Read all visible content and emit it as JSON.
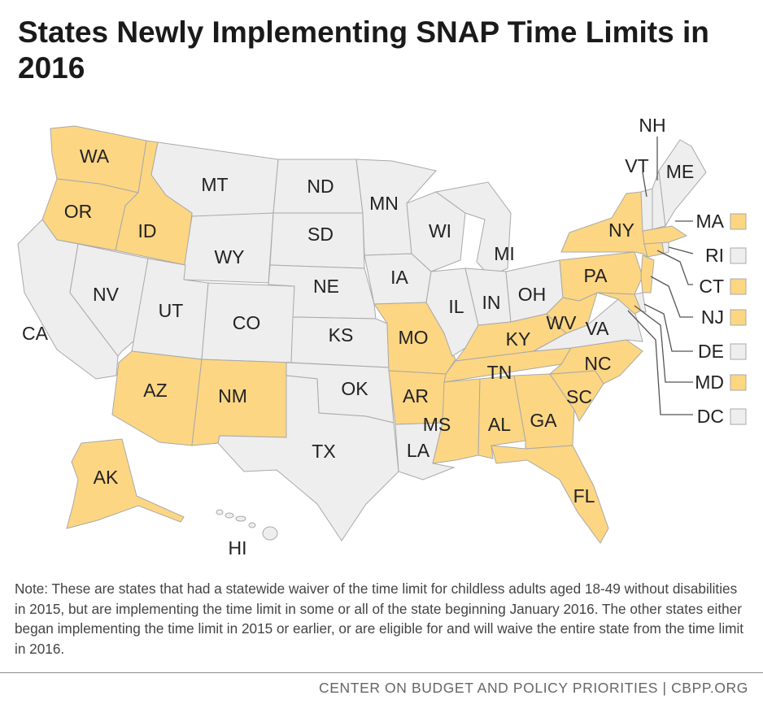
{
  "title": "States Newly Implementing SNAP Time Limits in 2016",
  "colors": {
    "implementing": "#fcd683",
    "other": "#eeeeee",
    "border": "#a9a9a9",
    "leader": "#555555"
  },
  "states": [
    {
      "code": "WA",
      "status": "implementing"
    },
    {
      "code": "OR",
      "status": "implementing"
    },
    {
      "code": "ID",
      "status": "implementing"
    },
    {
      "code": "CA",
      "status": "other"
    },
    {
      "code": "NV",
      "status": "other"
    },
    {
      "code": "MT",
      "status": "other"
    },
    {
      "code": "WY",
      "status": "other"
    },
    {
      "code": "UT",
      "status": "other"
    },
    {
      "code": "CO",
      "status": "other"
    },
    {
      "code": "AZ",
      "status": "implementing"
    },
    {
      "code": "NM",
      "status": "implementing"
    },
    {
      "code": "ND",
      "status": "other"
    },
    {
      "code": "SD",
      "status": "other"
    },
    {
      "code": "NE",
      "status": "other"
    },
    {
      "code": "KS",
      "status": "other"
    },
    {
      "code": "OK",
      "status": "other"
    },
    {
      "code": "TX",
      "status": "other"
    },
    {
      "code": "MN",
      "status": "other"
    },
    {
      "code": "IA",
      "status": "other"
    },
    {
      "code": "MO",
      "status": "implementing"
    },
    {
      "code": "AR",
      "status": "implementing"
    },
    {
      "code": "LA",
      "status": "other"
    },
    {
      "code": "WI",
      "status": "other"
    },
    {
      "code": "IL",
      "status": "other"
    },
    {
      "code": "MI",
      "status": "other"
    },
    {
      "code": "IN",
      "status": "other"
    },
    {
      "code": "OH",
      "status": "other"
    },
    {
      "code": "KY",
      "status": "implementing"
    },
    {
      "code": "TN",
      "status": "implementing"
    },
    {
      "code": "MS",
      "status": "implementing"
    },
    {
      "code": "AL",
      "status": "implementing"
    },
    {
      "code": "GA",
      "status": "implementing"
    },
    {
      "code": "FL",
      "status": "implementing"
    },
    {
      "code": "SC",
      "status": "implementing"
    },
    {
      "code": "NC",
      "status": "implementing"
    },
    {
      "code": "VA",
      "status": "other"
    },
    {
      "code": "WV",
      "status": "implementing"
    },
    {
      "code": "PA",
      "status": "implementing"
    },
    {
      "code": "NY",
      "status": "implementing"
    },
    {
      "code": "VT",
      "status": "other"
    },
    {
      "code": "NH",
      "status": "other"
    },
    {
      "code": "ME",
      "status": "other"
    },
    {
      "code": "AK",
      "status": "implementing"
    },
    {
      "code": "HI",
      "status": "other"
    }
  ],
  "small_states": [
    {
      "code": "MA",
      "status": "implementing"
    },
    {
      "code": "RI",
      "status": "other"
    },
    {
      "code": "CT",
      "status": "implementing"
    },
    {
      "code": "NJ",
      "status": "implementing"
    },
    {
      "code": "DE",
      "status": "other"
    },
    {
      "code": "MD",
      "status": "implementing"
    },
    {
      "code": "DC",
      "status": "other"
    }
  ],
  "note": "Note: These are states that had a statewide waiver of the time limit for childless adults aged 18-49 without disabilities in 2015, but are implementing the time limit in some or all of the state beginning January 2016. The other states either began implementing the time limit in 2015 or earlier, or are eligible for and will waive the entire state from the time limit in 2016.",
  "footer": "CENTER ON BUDGET AND POLICY PRIORITIES | CBPP.ORG"
}
